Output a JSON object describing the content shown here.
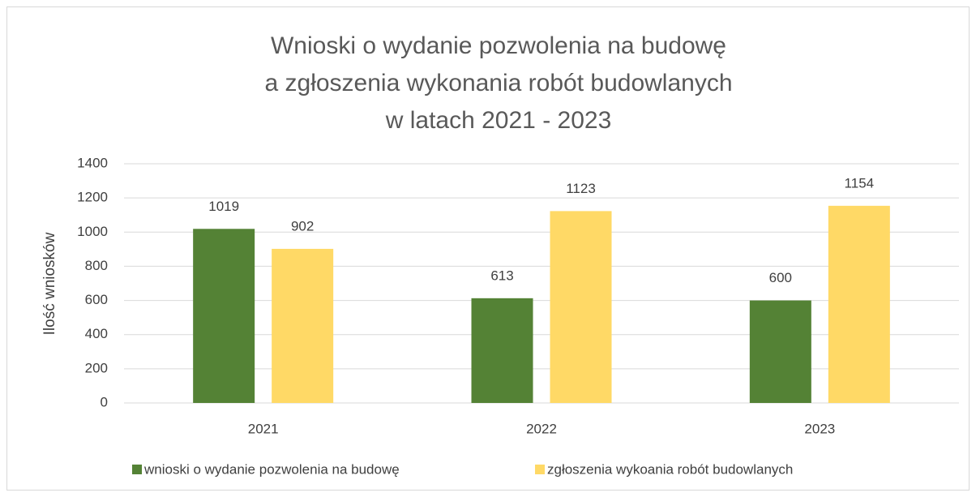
{
  "chart_data": {
    "type": "bar",
    "title": [
      "Wnioski o wydanie pozwolenia na budowę",
      "a zgłoszenia wykonania robót budowlanych",
      "w latach 2021 - 2023"
    ],
    "y_label": "Ilość wniosków",
    "categories": [
      "2021",
      "2022",
      "2023"
    ],
    "series": [
      {
        "name": "wnioski o wydanie pozwolenia na budowę",
        "color": "#548235",
        "values": [
          1019,
          613,
          600
        ]
      },
      {
        "name": "zgłoszenia wykoania robót budowlanych",
        "color": "#ffd966",
        "values": [
          902,
          1123,
          1154
        ]
      }
    ],
    "ylim": [
      0,
      1400
    ],
    "yticks": [
      0,
      200,
      400,
      600,
      800,
      1000,
      1200,
      1400
    ],
    "grid": true,
    "legend": "bottom"
  }
}
